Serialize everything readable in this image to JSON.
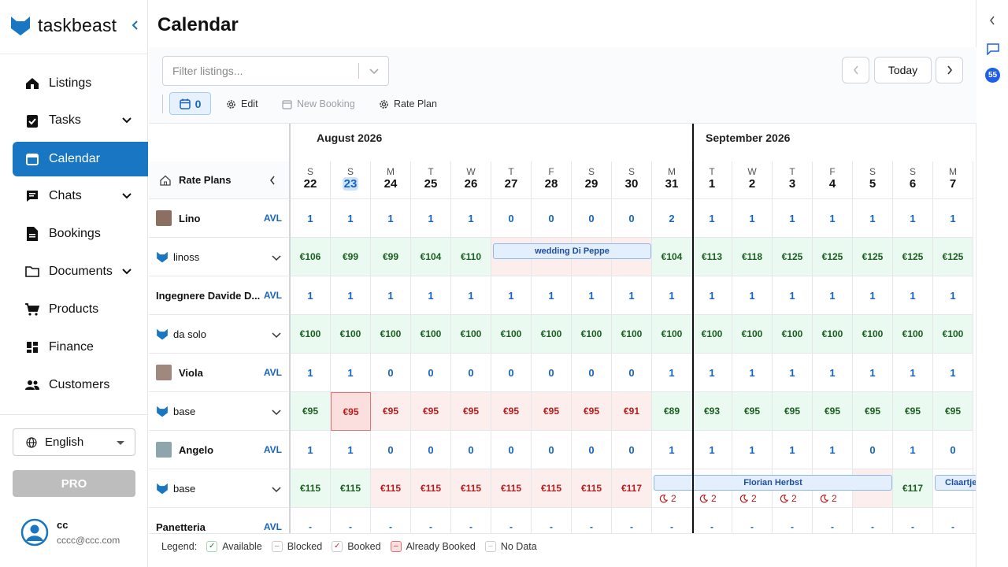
{
  "app": {
    "name": "taskbeast"
  },
  "nav": {
    "listings": "Listings",
    "tasks": "Tasks",
    "calendar": "Calendar",
    "chats": "Chats",
    "bookings": "Bookings",
    "documents": "Documents",
    "products": "Products",
    "finance": "Finance",
    "customers": "Customers"
  },
  "language": "English",
  "pro_label": "PRO",
  "user": {
    "name": "cc",
    "email": "cccc@ccc.com"
  },
  "page": {
    "title": "Calendar"
  },
  "toolbar": {
    "filter_placeholder": "Filter listings...",
    "today": "Today",
    "selected_count": "0",
    "edit": "Edit",
    "new_booking": "New Booking",
    "rate_plan": "Rate Plan"
  },
  "grid": {
    "rate_plans_label": "Rate Plans",
    "months": [
      "August 2026",
      "September 2026"
    ],
    "days": [
      {
        "dow": "S",
        "num": "22"
      },
      {
        "dow": "S",
        "num": "23",
        "today": true
      },
      {
        "dow": "M",
        "num": "24"
      },
      {
        "dow": "T",
        "num": "25"
      },
      {
        "dow": "W",
        "num": "26"
      },
      {
        "dow": "T",
        "num": "27"
      },
      {
        "dow": "F",
        "num": "28"
      },
      {
        "dow": "S",
        "num": "29"
      },
      {
        "dow": "S",
        "num": "30"
      },
      {
        "dow": "M",
        "num": "31"
      },
      {
        "dow": "T",
        "num": "1"
      },
      {
        "dow": "W",
        "num": "2"
      },
      {
        "dow": "T",
        "num": "3"
      },
      {
        "dow": "F",
        "num": "4"
      },
      {
        "dow": "S",
        "num": "5"
      },
      {
        "dow": "S",
        "num": "6"
      },
      {
        "dow": "M",
        "num": "7"
      }
    ],
    "rows": [
      {
        "type": "listing",
        "label": "Lino",
        "tag": "AVL",
        "thumb": "#8d6e63",
        "cells": [
          "1",
          "1",
          "1",
          "1",
          "1",
          "0",
          "0",
          "0",
          "0",
          "2",
          "1",
          "1",
          "1",
          "1",
          "1",
          "1",
          "1"
        ]
      },
      {
        "type": "rate",
        "label": "linoss",
        "cells": [
          [
            "€106",
            "g"
          ],
          [
            "€99",
            "g"
          ],
          [
            "€99",
            "g"
          ],
          [
            "€104",
            "g"
          ],
          [
            "€110",
            "g"
          ],
          [
            "",
            "r"
          ],
          [
            "",
            "r"
          ],
          [
            "",
            "r"
          ],
          [
            "",
            "r"
          ],
          [
            "€104",
            "g"
          ],
          [
            "€113",
            "g"
          ],
          [
            "€118",
            "g"
          ],
          [
            "€125",
            "g"
          ],
          [
            "€125",
            "g"
          ],
          [
            "€125",
            "g"
          ],
          [
            "€125",
            "g"
          ],
          [
            "€125",
            "g"
          ]
        ]
      },
      {
        "type": "listing",
        "label": "Ingegnere Davide D...",
        "tag": "AVL",
        "cells": [
          "1",
          "1",
          "1",
          "1",
          "1",
          "1",
          "1",
          "1",
          "1",
          "1",
          "1",
          "1",
          "1",
          "1",
          "1",
          "1",
          "1"
        ]
      },
      {
        "type": "rate",
        "label": "da solo",
        "cells": [
          [
            "€100",
            "g"
          ],
          [
            "€100",
            "g"
          ],
          [
            "€100",
            "g"
          ],
          [
            "€100",
            "g"
          ],
          [
            "€100",
            "g"
          ],
          [
            "€100",
            "g"
          ],
          [
            "€100",
            "g"
          ],
          [
            "€100",
            "g"
          ],
          [
            "€100",
            "g"
          ],
          [
            "€100",
            "g"
          ],
          [
            "€100",
            "g"
          ],
          [
            "€100",
            "g"
          ],
          [
            "€100",
            "g"
          ],
          [
            "€100",
            "g"
          ],
          [
            "€100",
            "g"
          ],
          [
            "€100",
            "g"
          ],
          [
            "€100",
            "g"
          ]
        ]
      },
      {
        "type": "listing",
        "label": "Viola",
        "tag": "AVL",
        "thumb": "#a1887f",
        "cells": [
          "1",
          "1",
          "0",
          "0",
          "0",
          "0",
          "0",
          "0",
          "0",
          "1",
          "1",
          "1",
          "1",
          "1",
          "1",
          "1",
          "1"
        ]
      },
      {
        "type": "rate",
        "label": "base",
        "cells": [
          [
            "€95",
            "g"
          ],
          [
            "€95",
            "s"
          ],
          [
            "€95",
            "r"
          ],
          [
            "€95",
            "r"
          ],
          [
            "€95",
            "r"
          ],
          [
            "€95",
            "r"
          ],
          [
            "€95",
            "r"
          ],
          [
            "€95",
            "r"
          ],
          [
            "€91",
            "r"
          ],
          [
            "€89",
            "g"
          ],
          [
            "€93",
            "g"
          ],
          [
            "€95",
            "g"
          ],
          [
            "€95",
            "g"
          ],
          [
            "€95",
            "g"
          ],
          [
            "€95",
            "g"
          ],
          [
            "€95",
            "g"
          ],
          [
            "€95",
            "g"
          ]
        ]
      },
      {
        "type": "listing",
        "label": "Angelo",
        "tag": "AVL",
        "thumb": "#90a4ae",
        "cells": [
          "1",
          "1",
          "0",
          "0",
          "0",
          "0",
          "0",
          "0",
          "0",
          "1",
          "1",
          "1",
          "1",
          "1",
          "0",
          "1",
          "0"
        ]
      },
      {
        "type": "rate",
        "label": "base",
        "cells": [
          [
            "€115",
            "g"
          ],
          [
            "€115",
            "g"
          ],
          [
            "€115",
            "r"
          ],
          [
            "€115",
            "r"
          ],
          [
            "€115",
            "r"
          ],
          [
            "€115",
            "r"
          ],
          [
            "€115",
            "r"
          ],
          [
            "€115",
            "r"
          ],
          [
            "€117",
            "r"
          ],
          [
            "",
            "b"
          ],
          [
            "",
            "b"
          ],
          [
            "",
            "b"
          ],
          [
            "",
            "b"
          ],
          [
            "",
            "b"
          ],
          [
            "",
            "r"
          ],
          [
            "€117",
            "g"
          ],
          [
            "",
            "b"
          ]
        ]
      },
      {
        "type": "listing",
        "label": "Panetteria",
        "tag": "AVL",
        "cells": [
          "-",
          "-",
          "-",
          "-",
          "-",
          "-",
          "-",
          "-",
          "-",
          "-",
          "-",
          "-",
          "-",
          "-",
          "-",
          "-",
          "-"
        ]
      }
    ],
    "bookings": [
      {
        "label": "wedding Di Peppe",
        "row": 1,
        "start": 5,
        "span": 4
      },
      {
        "label": "Florian Herbst",
        "row": 7,
        "start": 9,
        "span": 6
      },
      {
        "label": "Claartje",
        "row": 7,
        "start": 16,
        "span": 1
      }
    ],
    "nights": [
      {
        "value": "2",
        "row": 7,
        "col": 9
      },
      {
        "value": "2",
        "row": 7,
        "col": 10
      },
      {
        "value": "2",
        "row": 7,
        "col": 11
      },
      {
        "value": "2",
        "row": 7,
        "col": 12
      },
      {
        "value": "2",
        "row": 7,
        "col": 13
      }
    ]
  },
  "legend": {
    "title": "Legend:",
    "items": [
      "Available",
      "Blocked",
      "Booked",
      "Already Booked",
      "No Data"
    ]
  },
  "rail": {
    "badge": "55"
  },
  "colors": {
    "brand": "#1976c2",
    "available": "#eafaf1",
    "booked": "#fdeeee",
    "avl": "#1565c0"
  }
}
